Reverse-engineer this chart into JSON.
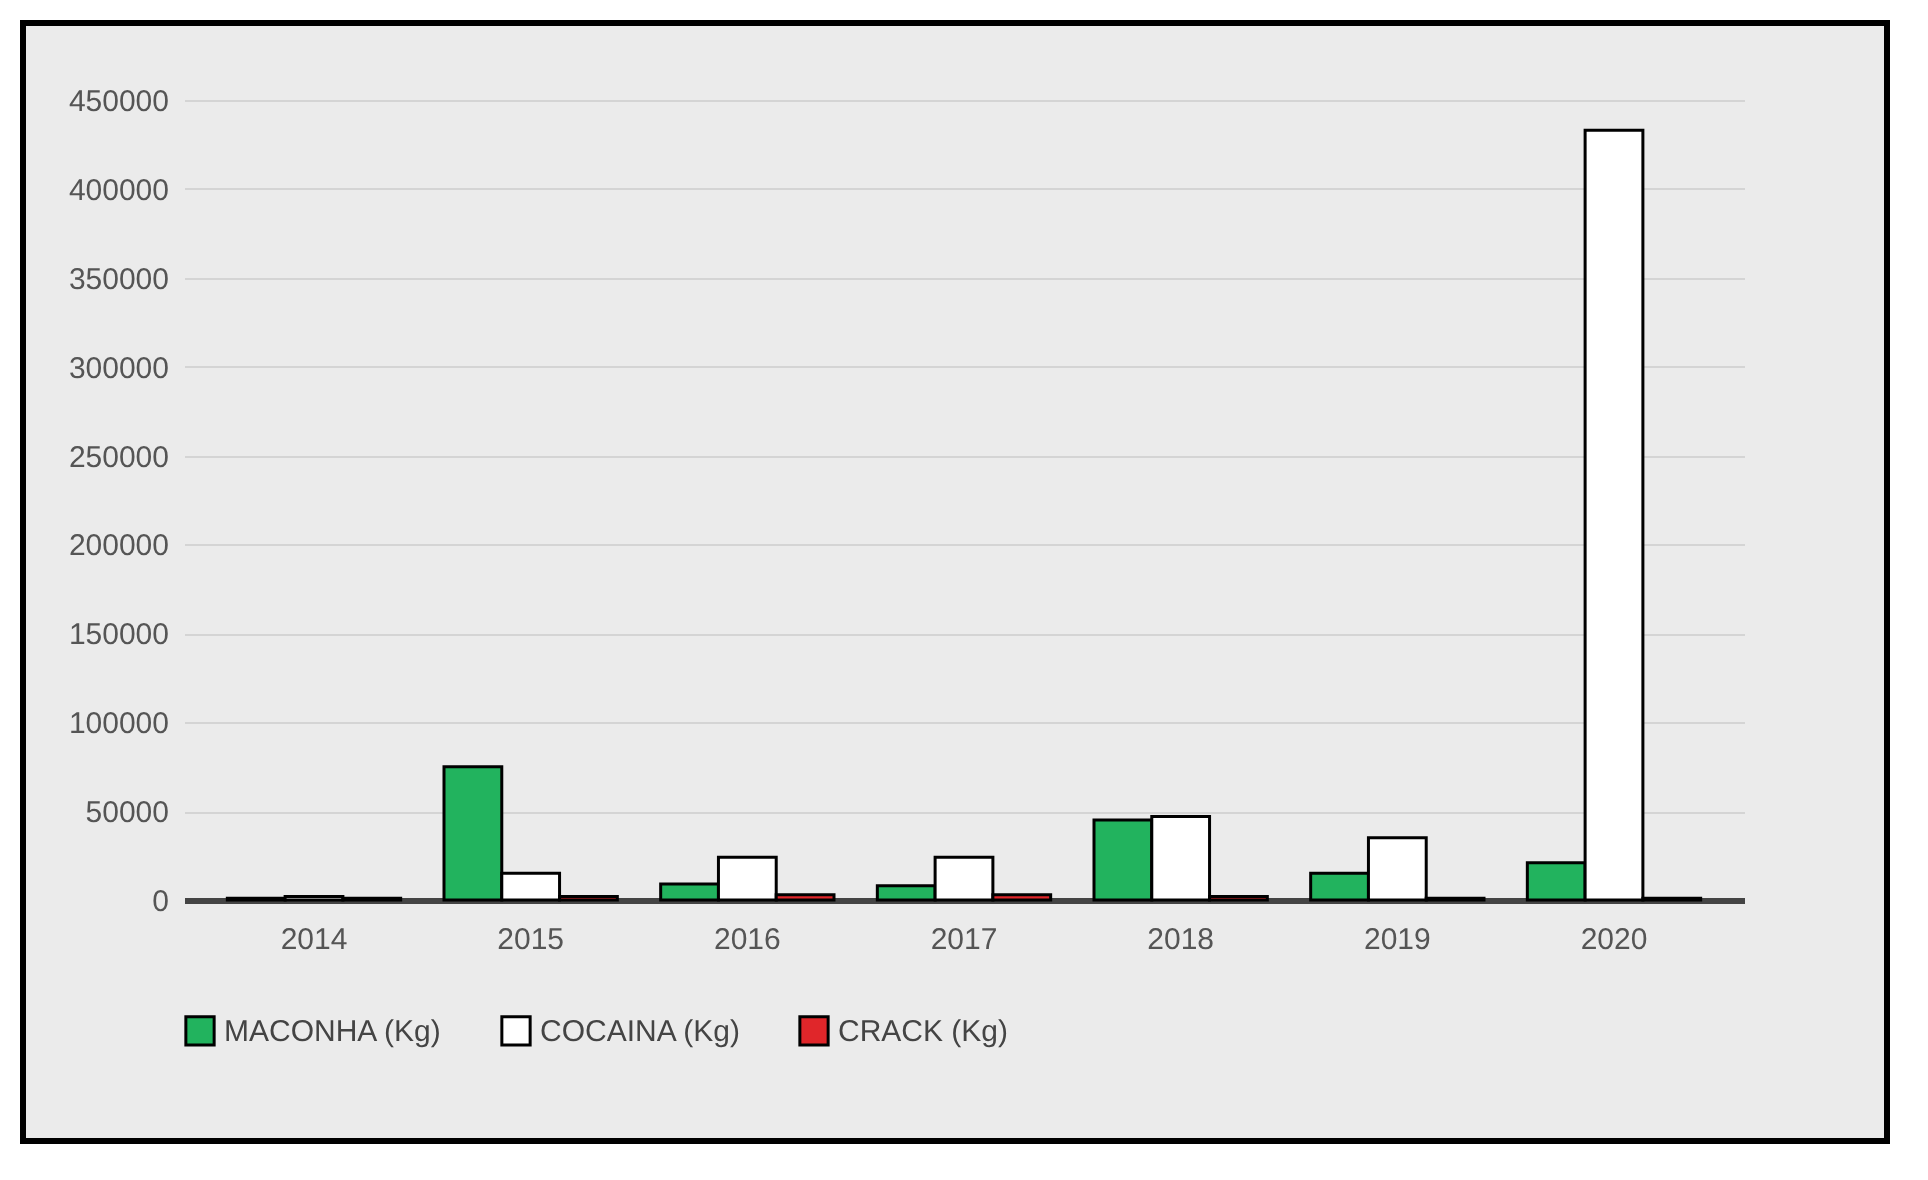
{
  "chart_data": {
    "type": "bar",
    "categories": [
      "2014",
      "2015",
      "2016",
      "2017",
      "2018",
      "2019",
      "2020"
    ],
    "series": [
      {
        "name": "MACONHA (Kg)",
        "color": "#22b35e",
        "values": [
          1000,
          75000,
          9000,
          8000,
          45000,
          15000,
          21000
        ]
      },
      {
        "name": "COCAINA (Kg)",
        "color": "#ffffff",
        "values": [
          2000,
          15000,
          24000,
          24000,
          47000,
          35000,
          433000
        ]
      },
      {
        "name": "CRACK (Kg)",
        "color": "#e0262a",
        "values": [
          1000,
          2000,
          3000,
          3000,
          2000,
          1000,
          1000
        ]
      }
    ],
    "ylim": [
      0,
      450000
    ],
    "yticks": [
      0,
      50000,
      100000,
      150000,
      200000,
      250000,
      300000,
      350000,
      400000,
      450000
    ],
    "grid": "y",
    "legend": "bottom"
  }
}
